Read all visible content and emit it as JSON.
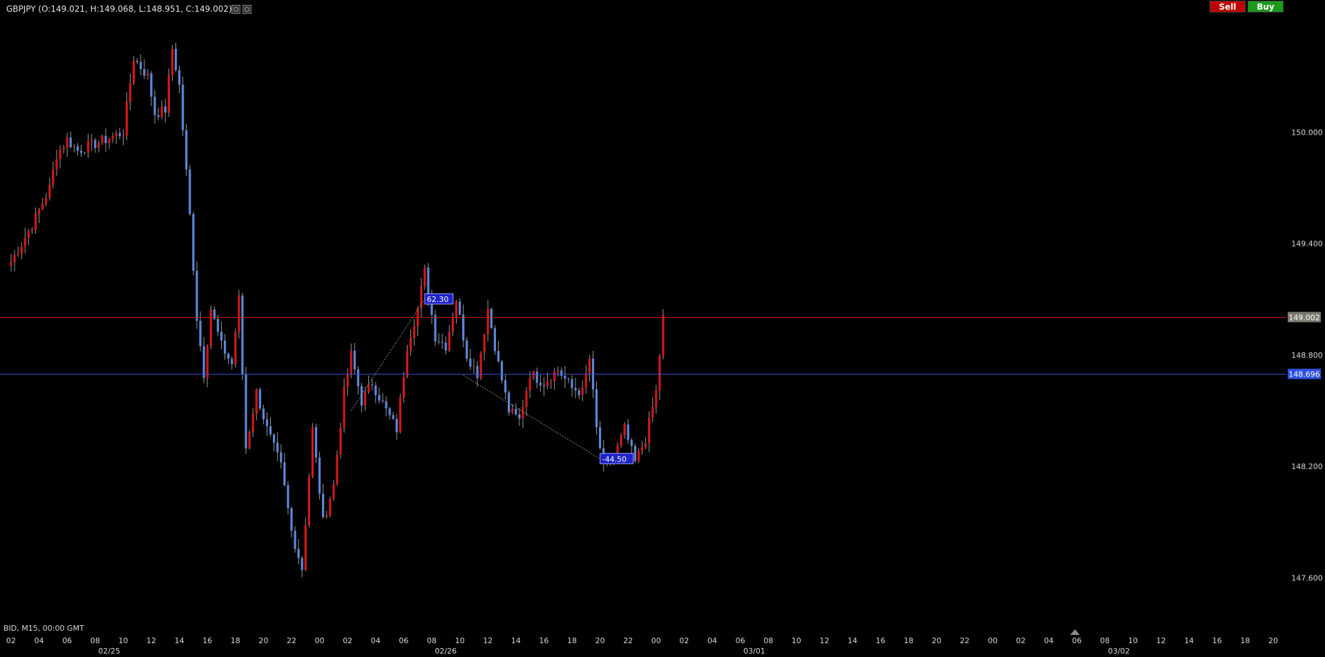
{
  "header": {
    "title": "GBPJPY (O:149.021, H:149.068, L:148.951, C:149.002)",
    "sell_label": "Sell",
    "buy_label": "Buy"
  },
  "footer": {
    "info": "BID, M15, 00:00 GMT"
  },
  "colors": {
    "background": "#000000",
    "up_candle": "#d01818",
    "down_candle": "#5b87d9",
    "wick": "#9a9a9a",
    "price_line": "#c01818",
    "h_line": "#3b55d9",
    "axis_text": "#d8d8d8"
  },
  "chart_data": {
    "type": "candlestick",
    "symbol": "GBPJPY",
    "timeframe": "M15",
    "ylim": [
      147.4,
      150.6
    ],
    "yticks": [
      "150.000",
      "149.400",
      "148.800",
      "148.200",
      "147.600"
    ],
    "xticks": [
      "02",
      "04",
      "06",
      "08",
      "10",
      "12",
      "14",
      "16",
      "18",
      "20",
      "22",
      "00",
      "02",
      "04",
      "06",
      "08",
      "10",
      "12",
      "14",
      "16",
      "18",
      "20",
      "22",
      "00",
      "02",
      "04",
      "06",
      "08",
      "10",
      "12",
      "14",
      "16",
      "18",
      "20",
      "22",
      "00",
      "02",
      "04",
      "06",
      "08",
      "10",
      "12",
      "14",
      "16",
      "18",
      "20"
    ],
    "date_labels": [
      {
        "label": "02/25",
        "after_tick": 3
      },
      {
        "label": "02/26",
        "after_tick": 15
      },
      {
        "label": "03/01",
        "after_tick": 26
      },
      {
        "label": "03/02",
        "after_tick": 39
      }
    ],
    "current_price": {
      "value": 149.002,
      "label": "149.002"
    },
    "horizontal_line": {
      "value": 148.696,
      "label": "148.696"
    },
    "annotations": [
      {
        "label": "62.30",
        "value": 149.1
      },
      {
        "label": "-44.50",
        "value": 148.24
      }
    ],
    "anchors": [
      {
        "t": 0,
        "price": 149.3
      },
      {
        "t": 6,
        "price": 149.5
      },
      {
        "t": 11,
        "price": 149.7
      },
      {
        "t": 13,
        "price": 149.88
      },
      {
        "t": 16,
        "price": 149.96
      },
      {
        "t": 19,
        "price": 149.9
      },
      {
        "t": 23,
        "price": 149.93
      },
      {
        "t": 27,
        "price": 149.96
      },
      {
        "t": 32,
        "price": 150.0
      },
      {
        "t": 35,
        "price": 150.4
      },
      {
        "t": 39,
        "price": 150.3
      },
      {
        "t": 41,
        "price": 150.1
      },
      {
        "t": 44,
        "price": 150.12
      },
      {
        "t": 46,
        "price": 150.45
      },
      {
        "t": 48,
        "price": 150.25
      },
      {
        "t": 51,
        "price": 149.55
      },
      {
        "t": 53,
        "price": 149.0
      },
      {
        "t": 55,
        "price": 148.7
      },
      {
        "t": 57,
        "price": 149.05
      },
      {
        "t": 60,
        "price": 148.85
      },
      {
        "t": 63,
        "price": 148.75
      },
      {
        "t": 65,
        "price": 149.1
      },
      {
        "t": 67,
        "price": 148.3
      },
      {
        "t": 70,
        "price": 148.6
      },
      {
        "t": 73,
        "price": 148.4
      },
      {
        "t": 77,
        "price": 148.2
      },
      {
        "t": 80,
        "price": 147.85
      },
      {
        "t": 83,
        "price": 147.65
      },
      {
        "t": 86,
        "price": 148.4
      },
      {
        "t": 89,
        "price": 147.9
      },
      {
        "t": 92,
        "price": 148.1
      },
      {
        "t": 95,
        "price": 148.6
      },
      {
        "t": 97,
        "price": 148.8
      },
      {
        "t": 100,
        "price": 148.55
      },
      {
        "t": 103,
        "price": 148.65
      },
      {
        "t": 107,
        "price": 148.5
      },
      {
        "t": 110,
        "price": 148.4
      },
      {
        "t": 113,
        "price": 148.85
      },
      {
        "t": 116,
        "price": 149.05
      },
      {
        "t": 118,
        "price": 149.25
      },
      {
        "t": 121,
        "price": 148.9
      },
      {
        "t": 124,
        "price": 148.85
      },
      {
        "t": 127,
        "price": 149.1
      },
      {
        "t": 130,
        "price": 148.8
      },
      {
        "t": 133,
        "price": 148.7
      },
      {
        "t": 136,
        "price": 149.05
      },
      {
        "t": 139,
        "price": 148.75
      },
      {
        "t": 142,
        "price": 148.5
      },
      {
        "t": 145,
        "price": 148.45
      },
      {
        "t": 148,
        "price": 148.7
      },
      {
        "t": 152,
        "price": 148.65
      },
      {
        "t": 156,
        "price": 148.72
      },
      {
        "t": 160,
        "price": 148.62
      },
      {
        "t": 163,
        "price": 148.6
      },
      {
        "t": 165,
        "price": 148.78
      },
      {
        "t": 167,
        "price": 148.4
      },
      {
        "t": 169,
        "price": 148.2
      },
      {
        "t": 172,
        "price": 148.25
      },
      {
        "t": 175,
        "price": 148.4
      },
      {
        "t": 178,
        "price": 148.22
      },
      {
        "t": 181,
        "price": 148.35
      },
      {
        "t": 184,
        "price": 148.6
      },
      {
        "t": 186,
        "price": 149.0
      }
    ]
  }
}
